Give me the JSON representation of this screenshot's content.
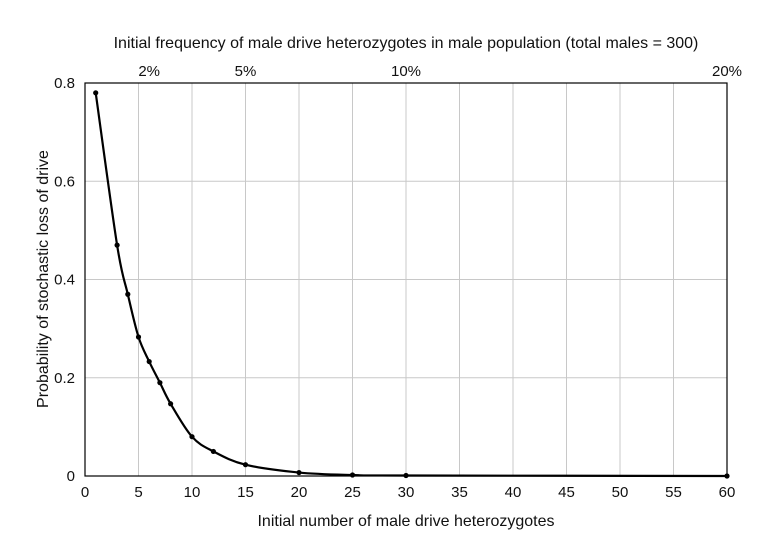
{
  "chart_data": {
    "type": "line",
    "top_title": "Initial frequency of male drive heterozygotes in male population (total males = 300)",
    "xlabel": "Initial number of male drive heterozygotes",
    "ylabel": "Probability of stochastic loss of drive",
    "xlim": [
      0,
      60
    ],
    "ylim": [
      0,
      0.8
    ],
    "x_ticks": [
      "0",
      "5",
      "10",
      "15",
      "20",
      "25",
      "30",
      "35",
      "40",
      "45",
      "50",
      "55",
      "60"
    ],
    "y_ticks": [
      "0",
      "0.2",
      "0.4",
      "0.6",
      "0.8"
    ],
    "top_ticks": [
      {
        "label": "2%",
        "x": 6
      },
      {
        "label": "5%",
        "x": 15
      },
      {
        "label": "10%",
        "x": 30
      },
      {
        "label": "20%",
        "x": 60
      }
    ],
    "grid": true,
    "series": [
      {
        "x": [
          1,
          3,
          4,
          5,
          6,
          7,
          8,
          10,
          12,
          15,
          20,
          25,
          30,
          60
        ],
        "y": [
          0.78,
          0.47,
          0.37,
          0.283,
          0.233,
          0.19,
          0.147,
          0.08,
          0.05,
          0.023,
          0.007,
          0.002,
          0.001,
          0.0
        ]
      }
    ]
  }
}
